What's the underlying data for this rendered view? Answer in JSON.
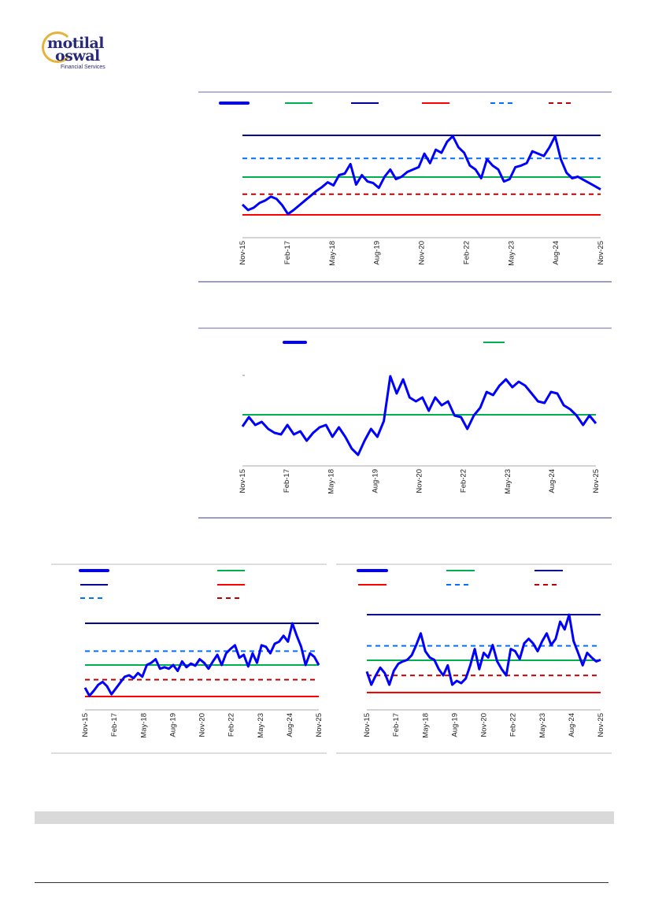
{
  "logo": {
    "line1": "motilal",
    "line2": "oswal",
    "tagline": "Financial Services"
  },
  "colors": {
    "series": "#0000ff",
    "avg": "#00b050",
    "max": "#000099",
    "min": "#ff0000",
    "plus_sd": "#0070ff",
    "minus_sd": "#c00000"
  },
  "chart_data": [
    {
      "type": "line",
      "note": "values on relative scale (no y-axis labels shown)",
      "x_labels": [
        "Nov-15",
        "Feb-17",
        "May-18",
        "Aug-19",
        "Nov-20",
        "Feb-22",
        "May-23",
        "Aug-24",
        "Nov-25"
      ],
      "ylim": [
        0,
        100
      ],
      "series": [
        13,
        6,
        9,
        15,
        18,
        23,
        20,
        12,
        1,
        6,
        12,
        18,
        24,
        30,
        35,
        41,
        37,
        50,
        52,
        64,
        38,
        50,
        42,
        40,
        34,
        48,
        57,
        45,
        48,
        54,
        57,
        60,
        77,
        65,
        82,
        78,
        92,
        99,
        85,
        78,
        62,
        57,
        46,
        70,
        62,
        57,
        42,
        45,
        60,
        62,
        65,
        80,
        77,
        74,
        85,
        99,
        70,
        53,
        46,
        48,
        44,
        40,
        36,
        32
      ],
      "ref_lines": [
        {
          "name": "max",
          "value": 100,
          "style": "max"
        },
        {
          "name": "+1sd",
          "value": 71,
          "style": "plus_sd"
        },
        {
          "name": "avg",
          "value": 47.5,
          "style": "avg"
        },
        {
          "name": "-1sd",
          "value": 26,
          "style": "minus_sd"
        },
        {
          "name": "min",
          "value": 0,
          "style": "min"
        }
      ],
      "legend": [
        "series",
        "avg",
        "max",
        "min",
        "plus_sd",
        "minus_sd"
      ]
    },
    {
      "type": "line",
      "note": "values on relative scale (no y-axis labels shown)",
      "x_labels": [
        "Nov-15",
        "Feb-17",
        "May-18",
        "Aug-19",
        "Nov-20",
        "Feb-22",
        "May-23",
        "Aug-24",
        "Nov-25"
      ],
      "ylim": [
        0,
        115
      ],
      "series": [
        48,
        60,
        50,
        54,
        45,
        40,
        38,
        50,
        38,
        42,
        30,
        40,
        47,
        50,
        35,
        47,
        35,
        20,
        12,
        30,
        45,
        35,
        55,
        112,
        90,
        108,
        85,
        80,
        85,
        68,
        85,
        75,
        80,
        62,
        60,
        45,
        62,
        72,
        92,
        88,
        100,
        108,
        98,
        105,
        100,
        90,
        80,
        78,
        92,
        90,
        75,
        70,
        62,
        50,
        62,
        52
      ],
      "ref_lines": [
        {
          "name": "avg",
          "value": 63,
          "style": "avg"
        }
      ],
      "legend": [
        "series",
        "avg"
      ]
    },
    {
      "type": "line",
      "note": "values on relative scale (no y-axis labels shown)",
      "x_labels": [
        "Nov-15",
        "Feb-17",
        "May-18",
        "Aug-19",
        "Nov-20",
        "Feb-22",
        "May-23",
        "Aug-24",
        "Nov-25"
      ],
      "ylim": [
        0,
        100
      ],
      "series": [
        12,
        1,
        8,
        16,
        20,
        14,
        3,
        11,
        19,
        27,
        29,
        25,
        32,
        27,
        43,
        46,
        51,
        38,
        40,
        38,
        43,
        35,
        48,
        40,
        45,
        42,
        51,
        46,
        38,
        48,
        57,
        43,
        59,
        65,
        70,
        53,
        57,
        41,
        59,
        46,
        70,
        68,
        59,
        72,
        75,
        83,
        75,
        100,
        83,
        68,
        43,
        59,
        54,
        43
      ],
      "ref_lines": [
        {
          "name": "max",
          "value": 100,
          "style": "max"
        },
        {
          "name": "+1sd",
          "value": 62,
          "style": "plus_sd"
        },
        {
          "name": "avg",
          "value": 43,
          "style": "avg"
        },
        {
          "name": "-1sd",
          "value": 23,
          "style": "minus_sd"
        },
        {
          "name": "min",
          "value": 0,
          "style": "min"
        }
      ],
      "legend": [
        "series",
        "avg",
        "max",
        "min",
        "plus_sd",
        "minus_sd"
      ]
    },
    {
      "type": "line",
      "note": "values on relative scale (no y-axis labels shown)",
      "x_labels": [
        "Nov-15",
        "Feb-17",
        "May-18",
        "Aug-19",
        "Nov-20",
        "Feb-22",
        "May-23",
        "Aug-24",
        "Nov-25"
      ],
      "ylim": [
        0,
        100
      ],
      "series": [
        27,
        10,
        22,
        32,
        25,
        10,
        28,
        37,
        40,
        42,
        48,
        61,
        76,
        53,
        45,
        42,
        30,
        22,
        35,
        10,
        15,
        12,
        18,
        35,
        56,
        30,
        51,
        45,
        61,
        40,
        30,
        22,
        56,
        53,
        43,
        63,
        69,
        63,
        53,
        66,
        76,
        61,
        69,
        91,
        81,
        100,
        66,
        51,
        35,
        51,
        45,
        40,
        42
      ],
      "ref_lines": [
        {
          "name": "max",
          "value": 100,
          "style": "max"
        },
        {
          "name": "+1sd",
          "value": 60,
          "style": "plus_sd"
        },
        {
          "name": "avg",
          "value": 41.4,
          "style": "avg"
        },
        {
          "name": "-1sd",
          "value": 22,
          "style": "minus_sd"
        },
        {
          "name": "min",
          "value": 0,
          "style": "min"
        }
      ],
      "legend": [
        "series",
        "avg",
        "max",
        "min",
        "plus_sd",
        "minus_sd"
      ]
    }
  ]
}
